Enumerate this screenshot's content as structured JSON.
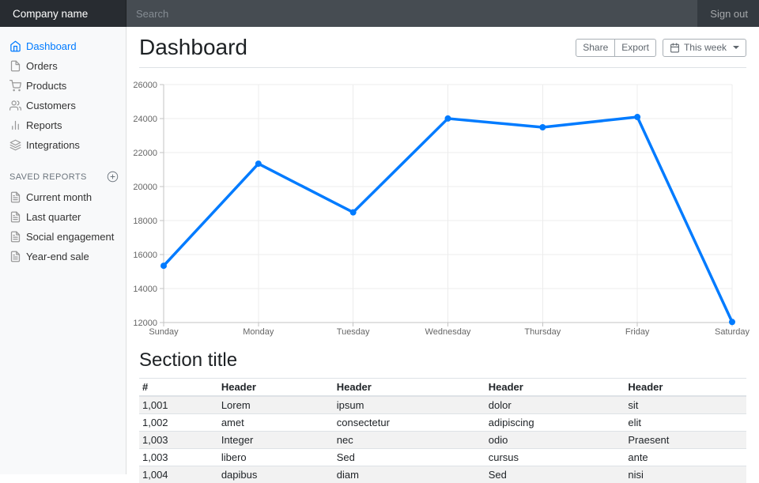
{
  "navbar": {
    "brand": "Company name",
    "search_placeholder": "Search",
    "sign_out": "Sign out"
  },
  "sidebar": {
    "items": [
      {
        "label": "Dashboard",
        "icon": "home",
        "active": true
      },
      {
        "label": "Orders",
        "icon": "file",
        "active": false
      },
      {
        "label": "Products",
        "icon": "shopping-cart",
        "active": false
      },
      {
        "label": "Customers",
        "icon": "users",
        "active": false
      },
      {
        "label": "Reports",
        "icon": "bar-chart",
        "active": false
      },
      {
        "label": "Integrations",
        "icon": "layers",
        "active": false
      }
    ],
    "saved_reports_heading": "Saved reports",
    "saved_reports_add_icon": "plus-circle",
    "saved_reports": [
      {
        "label": "Current month",
        "icon": "file-text"
      },
      {
        "label": "Last quarter",
        "icon": "file-text"
      },
      {
        "label": "Social engagement",
        "icon": "file-text"
      },
      {
        "label": "Year-end sale",
        "icon": "file-text"
      }
    ]
  },
  "header": {
    "title": "Dashboard",
    "share_label": "Share",
    "export_label": "Export",
    "period_label": "This week",
    "period_icon": "calendar"
  },
  "chart_data": {
    "type": "line",
    "title": "",
    "categories": [
      "Sunday",
      "Monday",
      "Tuesday",
      "Wednesday",
      "Thursday",
      "Friday",
      "Saturday"
    ],
    "values": [
      15339,
      21345,
      18483,
      24003,
      23489,
      24092,
      12034
    ],
    "ylim": [
      12000,
      26000
    ],
    "yticks": [
      12000,
      14000,
      16000,
      18000,
      20000,
      22000,
      24000,
      26000
    ],
    "xlabel": "",
    "ylabel": "",
    "grid": true,
    "legend": "none",
    "line_color": "#007bff",
    "point_color": "#007bff"
  },
  "section": {
    "title": "Section title",
    "table": {
      "headers": [
        "#",
        "Header",
        "Header",
        "Header",
        "Header"
      ],
      "col_widths": [
        "13%",
        "19%",
        "25%",
        "23%",
        "20%"
      ],
      "rows": [
        [
          "1,001",
          "Lorem",
          "ipsum",
          "dolor",
          "sit"
        ],
        [
          "1,002",
          "amet",
          "consectetur",
          "adipiscing",
          "elit"
        ],
        [
          "1,003",
          "Integer",
          "nec",
          "odio",
          "Praesent"
        ],
        [
          "1,003",
          "libero",
          "Sed",
          "cursus",
          "ante"
        ],
        [
          "1,004",
          "dapibus",
          "diam",
          "Sed",
          "nisi"
        ]
      ]
    }
  },
  "colors": {
    "accent": "#007bff",
    "navbar_bg": "#343a40",
    "brand_bg": "#282c31",
    "sidebar_bg": "#f8f9fa",
    "sidebar_icon": "#999999",
    "muted": "#6c757d",
    "border": "#dee2e6",
    "axis_text": "#666666"
  }
}
